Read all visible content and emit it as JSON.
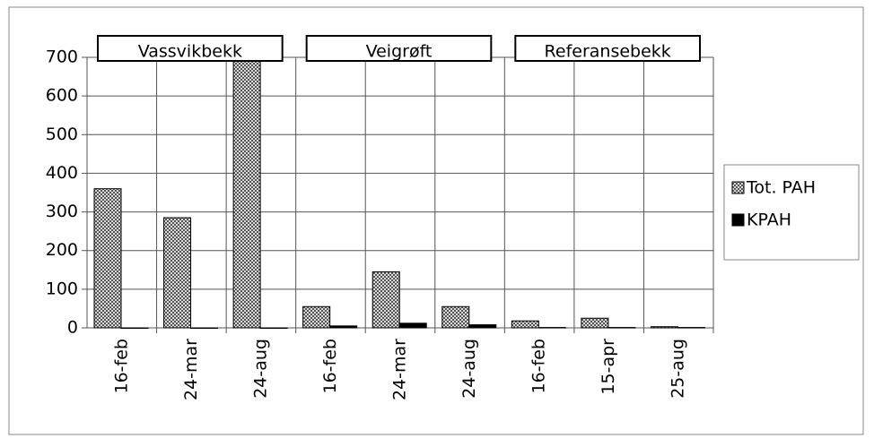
{
  "chart_data": {
    "type": "bar",
    "categories": [
      "16-feb",
      "24-mar",
      "24-aug",
      "16-feb",
      "24-mar",
      "24-aug",
      "16-feb",
      "15-apr",
      "25-aug"
    ],
    "groups": [
      {
        "label": "Vassvikbekk",
        "span": [
          0,
          2
        ]
      },
      {
        "label": "Veigrøft",
        "span": [
          3,
          5
        ]
      },
      {
        "label": "Referansebekk",
        "span": [
          6,
          8
        ]
      }
    ],
    "series": [
      {
        "name": "Tot. PAH",
        "color": "#9a9a9a",
        "values": [
          360,
          285,
          700,
          55,
          145,
          55,
          18,
          25,
          3
        ]
      },
      {
        "name": "KPAH",
        "color": "#000000",
        "values": [
          0,
          0,
          0,
          5,
          12,
          8,
          1,
          1,
          1
        ]
      }
    ],
    "ylim": [
      0,
      700
    ],
    "yticks": [
      0,
      100,
      200,
      300,
      400,
      500,
      600,
      700
    ],
    "grid": true,
    "legend": "right"
  }
}
